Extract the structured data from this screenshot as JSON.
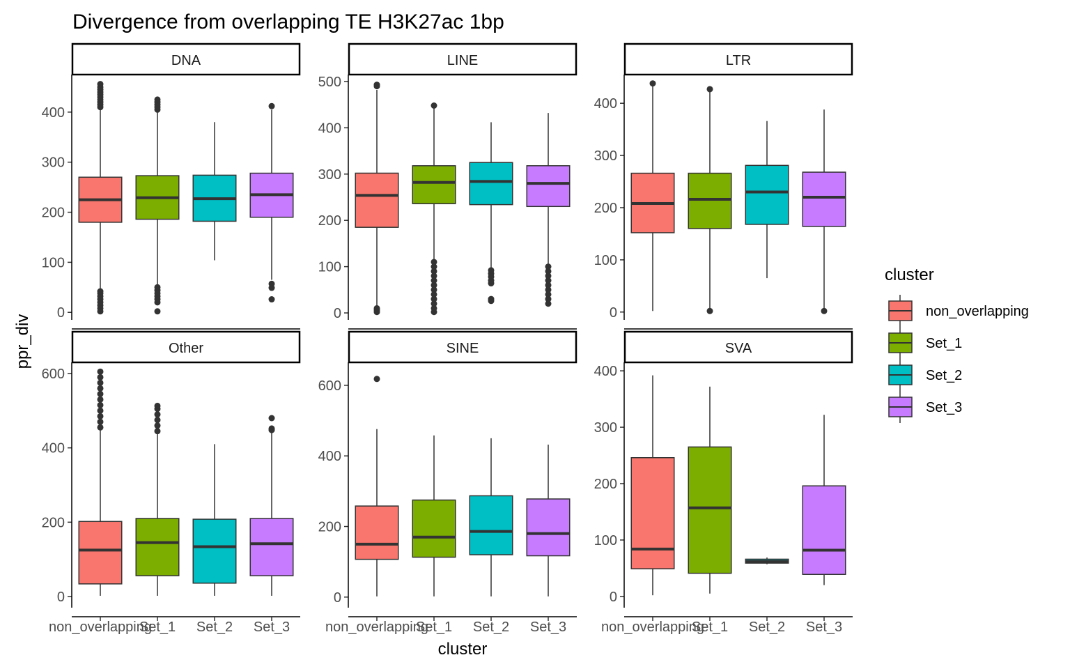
{
  "chart_data": {
    "type": "box",
    "title": "Divergence from overlapping TE H3K27ac 1bp",
    "xlabel": "cluster",
    "ylabel": "ppr_div",
    "categories": [
      "non_overlapping",
      "Set_1",
      "Set_2",
      "Set_3"
    ],
    "colors": [
      "#F8766D",
      "#7CAE00",
      "#00BFC4",
      "#C77CFF"
    ],
    "legend": {
      "title": "cluster",
      "position": "right"
    },
    "facets": [
      {
        "name": "DNA",
        "ylim": [
          -15,
          475
        ],
        "yticks": [
          0,
          100,
          200,
          300,
          400
        ],
        "boxes": [
          {
            "cluster": "non_overlapping",
            "whisker_low": 45,
            "q1": 180,
            "median": 225,
            "q3": 270,
            "whisker_high": 405,
            "outliers": [
              2,
              8,
              14,
              20,
              26,
              32,
              38,
              42,
              410,
              415,
              420,
              425,
              430,
              435,
              440,
              445,
              450,
              456
            ]
          },
          {
            "cluster": "Set_1",
            "whisker_low": 55,
            "q1": 186,
            "median": 229,
            "q3": 273,
            "whisker_high": 402,
            "outliers": [
              2,
              20,
              26,
              32,
              38,
              44,
              50,
              405,
              410,
              415,
              420,
              425
            ]
          },
          {
            "cluster": "Set_2",
            "whisker_low": 104,
            "q1": 182,
            "median": 227,
            "q3": 274,
            "whisker_high": 380,
            "outliers": []
          },
          {
            "cluster": "Set_3",
            "whisker_low": 65,
            "q1": 190,
            "median": 235,
            "q3": 278,
            "whisker_high": 405,
            "outliers": [
              26,
              49,
              57,
              412
            ]
          }
        ]
      },
      {
        "name": "LINE",
        "ylim": [
          -15,
          515
        ],
        "yticks": [
          0,
          100,
          200,
          300,
          400,
          500
        ],
        "boxes": [
          {
            "cluster": "non_overlapping",
            "whisker_low": 12,
            "q1": 185,
            "median": 254,
            "q3": 302,
            "whisker_high": 482,
            "outliers": [
              2,
              6,
              10,
              490,
              493
            ]
          },
          {
            "cluster": "Set_1",
            "whisker_low": 112,
            "q1": 236,
            "median": 282,
            "q3": 318,
            "whisker_high": 442,
            "outliers": [
              2,
              10,
              20,
              30,
              40,
              50,
              60,
              70,
              80,
              90,
              100,
              110,
              448
            ]
          },
          {
            "cluster": "Set_2",
            "whisker_low": 96,
            "q1": 234,
            "median": 284,
            "q3": 325,
            "whisker_high": 412,
            "outliers": [
              26,
              30,
              64,
              70,
              78,
              85,
              92
            ]
          },
          {
            "cluster": "Set_3",
            "whisker_low": 102,
            "q1": 230,
            "median": 280,
            "q3": 318,
            "whisker_high": 432,
            "outliers": [
              20,
              30,
              40,
              50,
              60,
              70,
              80,
              90,
              100
            ]
          }
        ]
      },
      {
        "name": "LTR",
        "ylim": [
          -15,
          455
        ],
        "yticks": [
          0,
          100,
          200,
          300,
          400
        ],
        "boxes": [
          {
            "cluster": "non_overlapping",
            "whisker_low": 2,
            "q1": 152,
            "median": 208,
            "q3": 266,
            "whisker_high": 436,
            "outliers": [
              438
            ]
          },
          {
            "cluster": "Set_1",
            "whisker_low": 2,
            "q1": 160,
            "median": 216,
            "q3": 266,
            "whisker_high": 425,
            "outliers": [
              2,
              427
            ]
          },
          {
            "cluster": "Set_2",
            "whisker_low": 65,
            "q1": 168,
            "median": 230,
            "q3": 281,
            "whisker_high": 366,
            "outliers": []
          },
          {
            "cluster": "Set_3",
            "whisker_low": 2,
            "q1": 164,
            "median": 220,
            "q3": 268,
            "whisker_high": 388,
            "outliers": [
              2
            ]
          }
        ]
      },
      {
        "name": "Other",
        "ylim": [
          -30,
          630
        ],
        "yticks": [
          0,
          200,
          400,
          600
        ],
        "boxes": [
          {
            "cluster": "non_overlapping",
            "whisker_low": 2,
            "q1": 34,
            "median": 125,
            "q3": 202,
            "whisker_high": 448,
            "outliers": [
              455,
              470,
              485,
              500,
              515,
              530,
              545,
              560,
              575,
              590,
              605
            ]
          },
          {
            "cluster": "Set_1",
            "whisker_low": 2,
            "q1": 56,
            "median": 145,
            "q3": 210,
            "whisker_high": 440,
            "outliers": [
              445,
              460,
              475,
              490,
              505,
              513
            ]
          },
          {
            "cluster": "Set_2",
            "whisker_low": 2,
            "q1": 36,
            "median": 134,
            "q3": 208,
            "whisker_high": 410,
            "outliers": []
          },
          {
            "cluster": "Set_3",
            "whisker_low": 2,
            "q1": 56,
            "median": 142,
            "q3": 210,
            "whisker_high": 442,
            "outliers": [
              448,
              452,
              480
            ]
          }
        ]
      },
      {
        "name": "SINE",
        "ylim": [
          -30,
          665
        ],
        "yticks": [
          0,
          200,
          400,
          600
        ],
        "boxes": [
          {
            "cluster": "non_overlapping",
            "whisker_low": 2,
            "q1": 107,
            "median": 150,
            "q3": 258,
            "whisker_high": 476,
            "outliers": [
              618
            ]
          },
          {
            "cluster": "Set_1",
            "whisker_low": 2,
            "q1": 113,
            "median": 170,
            "q3": 275,
            "whisker_high": 458,
            "outliers": []
          },
          {
            "cluster": "Set_2",
            "whisker_low": 2,
            "q1": 120,
            "median": 186,
            "q3": 287,
            "whisker_high": 450,
            "outliers": []
          },
          {
            "cluster": "Set_3",
            "whisker_low": 2,
            "q1": 117,
            "median": 180,
            "q3": 278,
            "whisker_high": 432,
            "outliers": []
          }
        ]
      },
      {
        "name": "SVA",
        "ylim": [
          -20,
          415
        ],
        "yticks": [
          0,
          100,
          200,
          300,
          400
        ],
        "boxes": [
          {
            "cluster": "non_overlapping",
            "whisker_low": 2,
            "q1": 49,
            "median": 84,
            "q3": 246,
            "whisker_high": 392,
            "outliers": []
          },
          {
            "cluster": "Set_1",
            "whisker_low": 5,
            "q1": 41,
            "median": 157,
            "q3": 265,
            "whisker_high": 372,
            "outliers": []
          },
          {
            "cluster": "Set_2",
            "whisker_low": 57,
            "q1": 59,
            "median": 62,
            "q3": 66,
            "whisker_high": 69,
            "outliers": []
          },
          {
            "cluster": "Set_3",
            "whisker_low": 20,
            "q1": 39,
            "median": 82,
            "q3": 196,
            "whisker_high": 322,
            "outliers": []
          }
        ]
      }
    ]
  }
}
